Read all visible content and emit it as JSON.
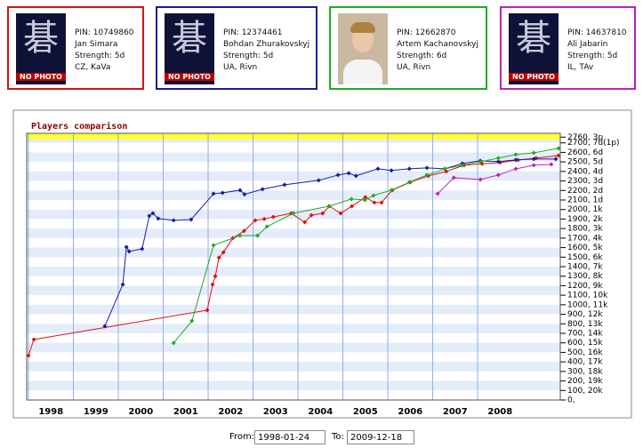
{
  "players": [
    {
      "pin": "PIN: 10749860",
      "strength": "Strength: 5d",
      "location": "CZ, KaVa",
      "photo_glyph": "碁",
      "photo_text": "NO PHOTO"
    },
    {
      "pin": "PIN: 12374461",
      "strength": "Strength: 5d",
      "location": "UA, Rivn",
      "photo_glyph": "碁",
      "photo_text": "NO PHOTO"
    },
    {
      "pin": "PIN: 12662870",
      "strength": "Strength: 6d",
      "location": "UA, Rivn"
    },
    {
      "pin": "PIN: 14637810",
      "strength": "Strength: 5d",
      "location": "IL, TAv",
      "photo_glyph": "碁",
      "photo_text": "NO PHOTO"
    }
  ],
  "chart_data": {
    "type": "line",
    "title": "Players comparison",
    "xlim": [
      1997.96,
      2009.84
    ],
    "ylim": [
      0,
      2800
    ],
    "grid": true,
    "xticks": [
      {
        "value": 1998,
        "label": "1998"
      },
      {
        "value": 1999,
        "label": "1999"
      },
      {
        "value": 2000,
        "label": "2000"
      },
      {
        "value": 2001,
        "label": "2001"
      },
      {
        "value": 2002,
        "label": "2002"
      },
      {
        "value": 2003,
        "label": "2003"
      },
      {
        "value": 2004,
        "label": "2004"
      },
      {
        "value": 2005,
        "label": "2005"
      },
      {
        "value": 2006,
        "label": "2006"
      },
      {
        "value": 2007,
        "label": "2007"
      },
      {
        "value": 2008,
        "label": "2008"
      }
    ],
    "yticks": [
      {
        "value": 2760,
        "label": "2760, 3p"
      },
      {
        "value": 2700,
        "label": "2700, 7d(1p)"
      },
      {
        "value": 2600,
        "label": "2600, 6d"
      },
      {
        "value": 2500,
        "label": "2500, 5d"
      },
      {
        "value": 2400,
        "label": "2400, 4d"
      },
      {
        "value": 2300,
        "label": "2300, 3d"
      },
      {
        "value": 2200,
        "label": "2200, 2d"
      },
      {
        "value": 2100,
        "label": "2100, 1d"
      },
      {
        "value": 2000,
        "label": "2000, 1k"
      },
      {
        "value": 1900,
        "label": "1900, 2k"
      },
      {
        "value": 1800,
        "label": "1800, 3k"
      },
      {
        "value": 1700,
        "label": "1700, 4k"
      },
      {
        "value": 1600,
        "label": "1600, 5k"
      },
      {
        "value": 1500,
        "label": "1500, 6k"
      },
      {
        "value": 1400,
        "label": "1400, 7k"
      },
      {
        "value": 1300,
        "label": "1300, 8k"
      },
      {
        "value": 1200,
        "label": "1200, 9k"
      },
      {
        "value": 1100,
        "label": "1100, 10k"
      },
      {
        "value": 1000,
        "label": "1000, 11k"
      },
      {
        "value": 900,
        "label": "900, 12k"
      },
      {
        "value": 800,
        "label": "800, 13k"
      },
      {
        "value": 700,
        "label": "700, 14k"
      },
      {
        "value": 600,
        "label": "600, 15k"
      },
      {
        "value": 500,
        "label": "500, 16k"
      },
      {
        "value": 400,
        "label": "400, 17k"
      },
      {
        "value": 300,
        "label": "300, 18k"
      },
      {
        "value": 200,
        "label": "200, 19k"
      },
      {
        "value": 100,
        "label": "100, 20k"
      },
      {
        "value": 0,
        "label": "0, "
      }
    ],
    "series": [
      {
        "name": "Jan Simara",
        "color": "#dd1111",
        "x": [
          1998.0,
          1998.12,
          2001.98,
          2002.1,
          2002.16,
          2002.24,
          2002.34,
          2002.55,
          2002.8,
          2003.05,
          2003.25,
          2003.45,
          2003.85,
          2004.15,
          2004.3,
          2004.55,
          2004.7,
          2004.95,
          2005.2,
          2005.5,
          2005.7,
          2005.86,
          2006.1,
          2006.5,
          2006.9,
          2007.3,
          2007.7,
          2008.1,
          2008.5,
          2008.9,
          2009.3,
          2009.8
        ],
        "values": [
          467,
          635,
          943,
          1213,
          1300,
          1494,
          1550,
          1700,
          1774,
          1886,
          1900,
          1923,
          1960,
          1867,
          1940,
          1960,
          2035,
          1960,
          2035,
          2129,
          2073,
          2073,
          2203,
          2287,
          2353,
          2400,
          2465,
          2480,
          2493,
          2520,
          2540,
          2567
        ]
      },
      {
        "name": "Bohdan Zhurakovskyj",
        "color": "#1a1aa0",
        "x": [
          1999.7,
          2000.1,
          2000.18,
          2000.24,
          2000.53,
          2000.69,
          2000.77,
          2000.89,
          2001.23,
          2001.62,
          2002.12,
          2002.32,
          2002.71,
          2002.81,
          2003.21,
          2003.7,
          2004.46,
          2004.89,
          2005.13,
          2005.29,
          2005.78,
          2006.08,
          2006.48,
          2006.87,
          2007.27,
          2007.66,
          2008.06,
          2008.46,
          2008.85,
          2009.25,
          2009.74
        ],
        "values": [
          775,
          1213,
          1606,
          1560,
          1587,
          1933,
          1961,
          1905,
          1886,
          1895,
          2166,
          2175,
          2203,
          2160,
          2213,
          2260,
          2306,
          2362,
          2381,
          2353,
          2428,
          2410,
          2428,
          2437,
          2428,
          2484,
          2512,
          2503,
          2521,
          2530,
          2530
        ]
      },
      {
        "name": "Artem Kachanovskyj",
        "color": "#22aa22",
        "x": [
          2001.23,
          2001.64,
          2002.12,
          2002.71,
          2003.1,
          2003.31,
          2003.9,
          2004.69,
          2005.19,
          2005.49,
          2005.68,
          2006.08,
          2006.48,
          2006.87,
          2007.27,
          2007.66,
          2008.06,
          2008.46,
          2008.85,
          2009.25,
          2009.8
        ],
        "values": [
          598,
          831,
          1625,
          1727,
          1727,
          1821,
          1961,
          2035,
          2110,
          2100,
          2147,
          2203,
          2287,
          2362,
          2427,
          2465,
          2502,
          2540,
          2577,
          2596,
          2642
        ]
      },
      {
        "name": "Ali Jabarin",
        "color": "#bb22bb",
        "x": [
          2007.11,
          2007.47,
          2008.06,
          2008.46,
          2008.85,
          2009.25,
          2009.64
        ],
        "values": [
          2166,
          2334,
          2315,
          2362,
          2427,
          2465,
          2474
        ]
      }
    ]
  },
  "form": {
    "from_label": "From:",
    "from_value": "1998-01-24",
    "to_label": "To:",
    "to_value": "2009-12-18"
  }
}
